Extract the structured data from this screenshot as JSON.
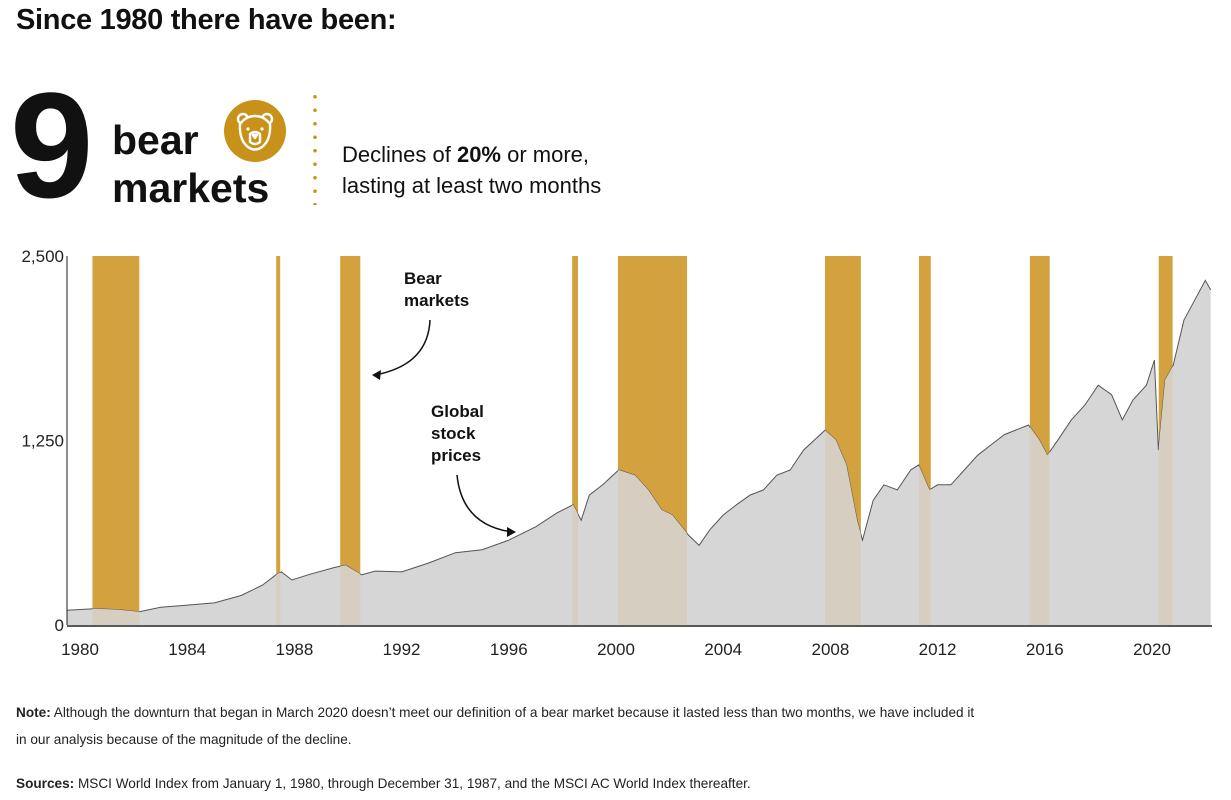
{
  "header": {
    "title": "Since 1980 there have been:",
    "count": "9",
    "label_line1": "bear",
    "label_line2": "markets",
    "icon": "bear-face-icon",
    "description_line1_pre": "Declines of ",
    "description_line1_bold": "20%",
    "description_line1_post": " or more,",
    "description_line2": "lasting at least two months"
  },
  "colors": {
    "bear_band": "#d3a23e",
    "bear_band_overlap": "#d6cec0",
    "area_fill": "#d6d6d6",
    "line": "#555555",
    "icon": "#c8921a"
  },
  "chart_data": {
    "type": "area",
    "xlim": [
      1979.5,
      2022.25
    ],
    "ylim": [
      0,
      2500
    ],
    "yticks": [
      0,
      1250,
      2500
    ],
    "ytick_labels": [
      "0",
      "1,250",
      "2,500"
    ],
    "xticks": [
      1980,
      1984,
      1988,
      1992,
      1996,
      2000,
      2004,
      2008,
      2012,
      2016,
      2020
    ],
    "xtick_labels": [
      "1980",
      "1984",
      "1988",
      "1992",
      "1996",
      "2000",
      "2004",
      "2008",
      "2012",
      "2016",
      "2020"
    ],
    "grid": false,
    "annotations": [
      {
        "text_lines": [
          "Bear",
          "markets"
        ]
      },
      {
        "text_lines": [
          "Global",
          "stock",
          "prices"
        ]
      }
    ],
    "bear_markets": [
      [
        1980.45,
        1982.2
      ],
      [
        1987.31,
        1987.46
      ],
      [
        1989.7,
        1990.45
      ],
      [
        1998.36,
        1998.58
      ],
      [
        2000.07,
        2002.65
      ],
      [
        2007.8,
        2009.14
      ],
      [
        2011.31,
        2011.75
      ],
      [
        2015.45,
        2016.19
      ],
      [
        2020.26,
        2020.78
      ]
    ],
    "series": [
      {
        "x": [
          1979.5,
          1980.5,
          1981.3,
          1982.2,
          1983,
          1984,
          1985,
          1986,
          1986.8,
          1987.3,
          1987.5,
          1987.9,
          1988.5,
          1989.5,
          1989.9,
          1990.5,
          1991,
          1992,
          1993,
          1994,
          1995,
          1996,
          1997,
          1997.8,
          1998.4,
          1998.7,
          1999,
          1999.5,
          2000.1,
          2000.7,
          2001.2,
          2001.7,
          2002.1,
          2002.7,
          2003.1,
          2003.5,
          2004,
          2004.5,
          2005,
          2005.5,
          2006,
          2006.5,
          2007,
          2007.8,
          2008.2,
          2008.6,
          2009.0,
          2009.2,
          2009.6,
          2010,
          2010.5,
          2011,
          2011.3,
          2011.7,
          2012,
          2012.5,
          2013,
          2013.5,
          2014,
          2014.5,
          2015.4,
          2015.8,
          2016.1,
          2016.5,
          2017,
          2017.5,
          2018,
          2018.5,
          2018.9,
          2019.3,
          2019.8,
          2020.1,
          2020.25,
          2020.5,
          2020.8,
          2021.2,
          2021.6,
          2022.0,
          2022.2
        ],
        "y": [
          100,
          110,
          105,
          90,
          120,
          135,
          150,
          200,
          270,
          340,
          360,
          305,
          340,
          390,
          405,
          340,
          365,
          360,
          420,
          490,
          510,
          575,
          665,
          760,
          815,
          710,
          880,
          950,
          1050,
          1015,
          915,
          780,
          745,
          610,
          540,
          645,
          745,
          815,
          880,
          915,
          1015,
          1050,
          1185,
          1320,
          1255,
          1085,
          710,
          575,
          845,
          950,
          915,
          1050,
          1085,
          915,
          950,
          950,
          1050,
          1150,
          1220,
          1290,
          1355,
          1255,
          1150,
          1255,
          1390,
          1490,
          1625,
          1560,
          1390,
          1525,
          1625,
          1795,
          1185,
          1660,
          1760,
          2065,
          2200,
          2335,
          2270
        ]
      }
    ]
  },
  "footer": {
    "note_label": "Note:",
    "note_text": " Although the downturn that began in March 2020 doesn’t meet our definition of a bear market because it lasted less than two months, we have included it",
    "note_text2": "in our analysis because of the magnitude of the decline.",
    "sources_label": "Sources:",
    "sources_text": " MSCI World Index from January 1, 1980, through December 31, 1987, and the MSCI AC World Index thereafter."
  }
}
